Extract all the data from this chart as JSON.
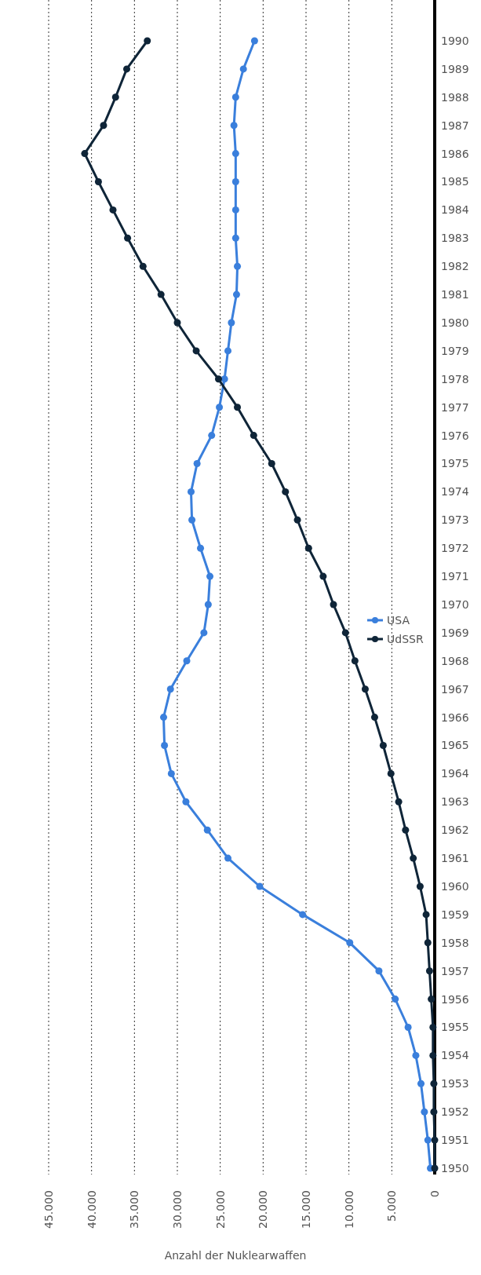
{
  "chart_data": {
    "type": "line",
    "orientation": "horizontal",
    "xlabel": "Anzahl der Nuklearwaffen",
    "categories": [
      "1990",
      "1989",
      "1988",
      "1987",
      "1986",
      "1985",
      "1984",
      "1983",
      "1982",
      "1981",
      "1980",
      "1979",
      "1978",
      "1977",
      "1976",
      "1975",
      "1974",
      "1973",
      "1972",
      "1971",
      "1970",
      "1969",
      "1968",
      "1967",
      "1966",
      "1965",
      "1964",
      "1963",
      "1962",
      "1961",
      "1960",
      "1959",
      "1958",
      "1957",
      "1956",
      "1955",
      "1954",
      "1953",
      "1952",
      "1951",
      "1950"
    ],
    "series": [
      {
        "name": "USA",
        "color": "#3a7fdc",
        "values": [
          21000,
          22300,
          23200,
          23400,
          23200,
          23200,
          23200,
          23200,
          23000,
          23100,
          23700,
          24100,
          24500,
          25100,
          26000,
          27700,
          28400,
          28300,
          27300,
          26200,
          26400,
          26900,
          28900,
          30800,
          31600,
          31500,
          30700,
          29000,
          26500,
          24100,
          20400,
          15400,
          9900,
          6500,
          4600,
          3100,
          2200,
          1600,
          1200,
          800,
          500
        ]
      },
      {
        "name": "UdSSR",
        "color": "#0f2538",
        "values": [
          33500,
          35900,
          37200,
          38600,
          40800,
          39200,
          37500,
          35800,
          34000,
          31900,
          30000,
          27800,
          25200,
          23000,
          21100,
          19000,
          17400,
          16000,
          14700,
          13000,
          11800,
          10400,
          9300,
          8100,
          7000,
          6000,
          5100,
          4200,
          3400,
          2500,
          1700,
          1000,
          800,
          600,
          400,
          200,
          200,
          100,
          100,
          0,
          0
        ]
      }
    ],
    "xlim": [
      45000,
      0
    ],
    "xticks": [
      0,
      {
        "value": 5000,
        "label": "5.000"
      },
      {
        "value": 10000,
        "label": "10.000"
      },
      {
        "value": 15000,
        "label": "15.000"
      },
      {
        "value": 20000,
        "label": "20.000"
      },
      {
        "value": 25000,
        "label": "25.000"
      },
      {
        "value": 30000,
        "label": "30.000"
      },
      {
        "value": 35000,
        "label": "35.000"
      },
      {
        "value": 40000,
        "label": "40.000"
      },
      {
        "value": 45000,
        "label": "45.000"
      }
    ],
    "grid": "x",
    "legend": "right",
    "marker": "circle",
    "line_style": "solid"
  }
}
